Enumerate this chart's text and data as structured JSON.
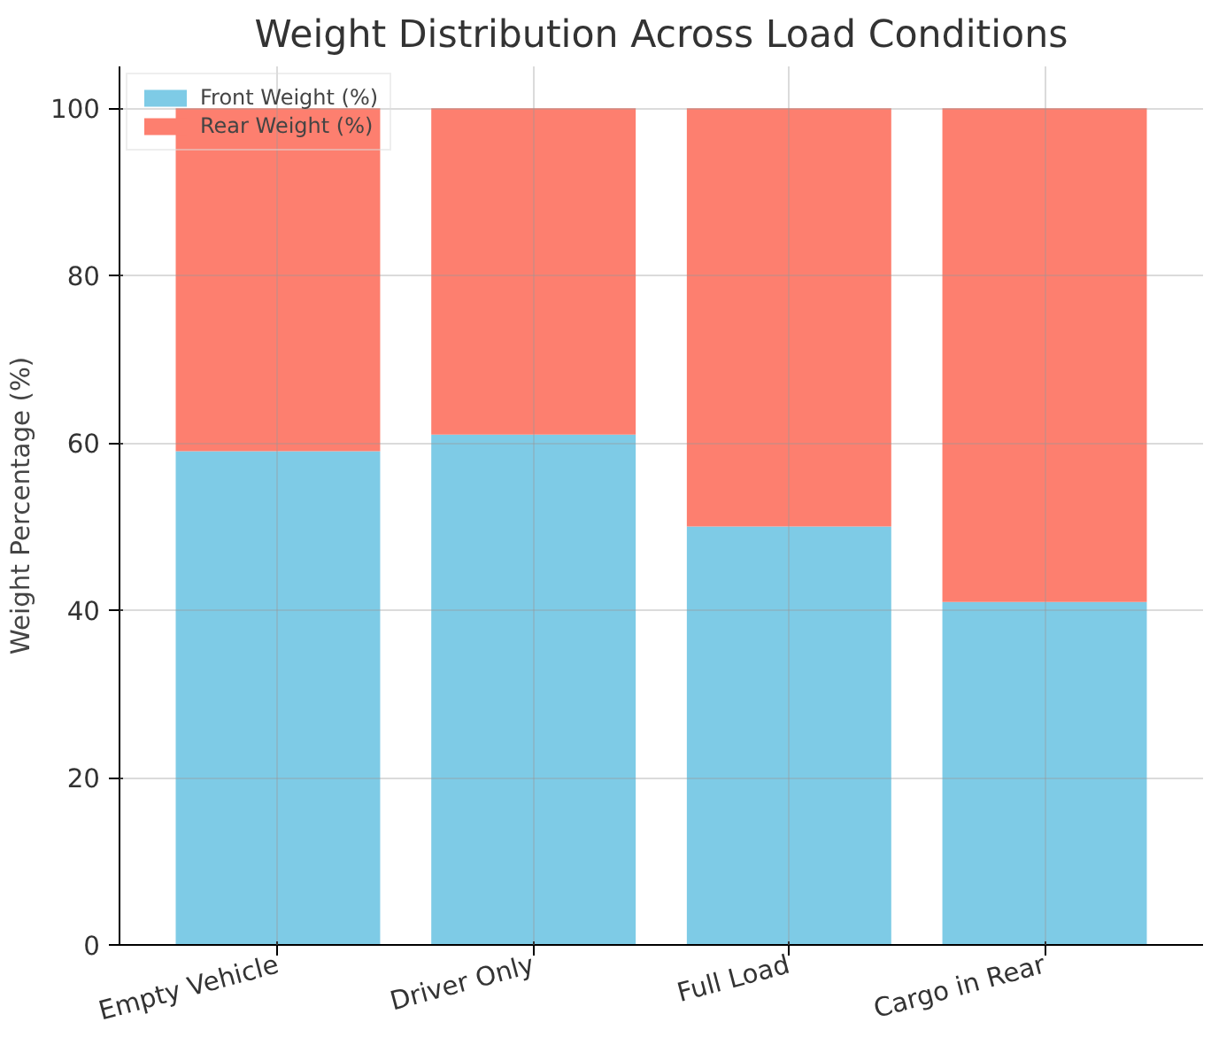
{
  "chart_data": {
    "type": "bar",
    "stacked": true,
    "title": "Weight Distribution Across Load Conditions",
    "ylabel": "Weight Percentage (%)",
    "categories": [
      "Empty Vehicle",
      "Driver Only",
      "Full Load",
      "Cargo in Rear"
    ],
    "series": [
      {
        "name": "Front Weight (%)",
        "color": "#7ecbe6",
        "values": [
          59,
          61,
          50,
          41
        ]
      },
      {
        "name": "Rear Weight (%)",
        "color": "#fd7f6f",
        "values": [
          41,
          39,
          50,
          59
        ]
      }
    ],
    "ylim": [
      0,
      105
    ],
    "yticks": [
      0,
      20,
      40,
      60,
      80,
      100
    ],
    "grid": true,
    "legend": "top left"
  }
}
